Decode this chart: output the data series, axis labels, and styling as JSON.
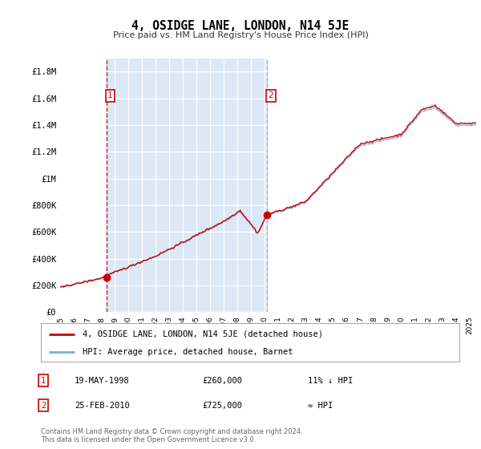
{
  "title": "4, OSIDGE LANE, LONDON, N14 5JE",
  "subtitle": "Price paid vs. HM Land Registry's House Price Index (HPI)",
  "plot_bg_color": "#dce8f5",
  "shade_color": "#dce8f5",
  "hpi_color": "#7aafd4",
  "price_color": "#cc0000",
  "dashed1_color": "#cc0000",
  "dashed2_color": "#aaaaaa",
  "ylim": [
    0,
    1900000
  ],
  "yticks": [
    0,
    200000,
    400000,
    600000,
    800000,
    1000000,
    1200000,
    1400000,
    1600000,
    1800000
  ],
  "ytick_labels": [
    "£0",
    "£200K",
    "£400K",
    "£600K",
    "£800K",
    "£1M",
    "£1.2M",
    "£1.4M",
    "£1.6M",
    "£1.8M"
  ],
  "xlim_start": 1995.0,
  "xlim_end": 2025.5,
  "sale1_x": 1998.38,
  "sale1_y": 260000,
  "sale2_x": 2010.15,
  "sale2_y": 725000,
  "legend_label1": "4, OSIDGE LANE, LONDON, N14 5JE (detached house)",
  "legend_label2": "HPI: Average price, detached house, Barnet",
  "ann1_label": "1",
  "ann2_label": "2",
  "ann1_date": "19-MAY-1998",
  "ann1_price": "£260,000",
  "ann1_hpi": "11% ↓ HPI",
  "ann2_date": "25-FEB-2010",
  "ann2_price": "£725,000",
  "ann2_hpi": "≈ HPI",
  "footer": "Contains HM Land Registry data © Crown copyright and database right 2024.\nThis data is licensed under the Open Government Licence v3.0."
}
